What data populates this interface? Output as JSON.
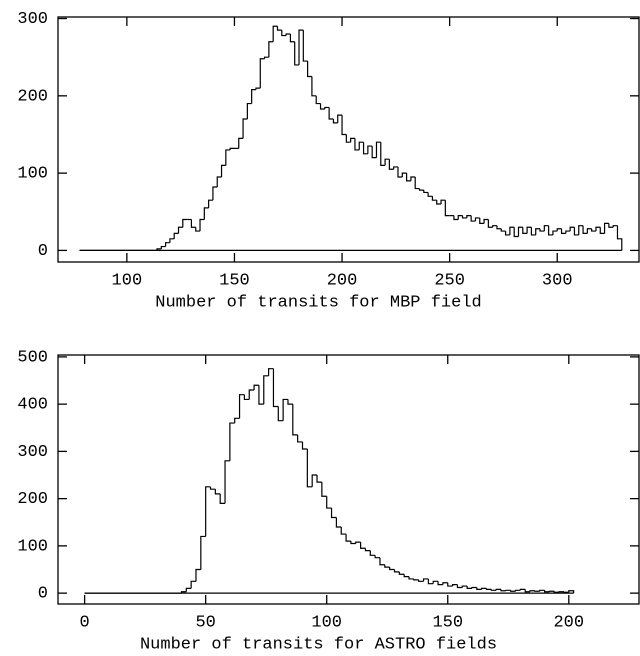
{
  "chart_data": [
    {
      "type": "histogram",
      "xlabel": "Number of transits for MBP field",
      "color": "#000000",
      "xlim": [
        68,
        338
      ],
      "ylim": [
        -15,
        302
      ],
      "xticks": [
        100,
        150,
        200,
        250,
        300
      ],
      "yticks": [
        0,
        100,
        200,
        300
      ],
      "bins": [
        78,
        80,
        82,
        84,
        86,
        88,
        90,
        92,
        94,
        96,
        98,
        100,
        102,
        104,
        106,
        108,
        110,
        112,
        114,
        116,
        118,
        120,
        122,
        124,
        126,
        128,
        130,
        132,
        134,
        136,
        138,
        140,
        142,
        144,
        146,
        148,
        150,
        152,
        154,
        156,
        158,
        160,
        162,
        164,
        166,
        168,
        170,
        172,
        174,
        176,
        178,
        180,
        182,
        184,
        186,
        188,
        190,
        192,
        194,
        196,
        198,
        200,
        202,
        204,
        206,
        208,
        210,
        212,
        214,
        216,
        218,
        220,
        222,
        224,
        226,
        228,
        230,
        232,
        234,
        236,
        238,
        240,
        242,
        244,
        246,
        248,
        250,
        252,
        254,
        256,
        258,
        260,
        262,
        264,
        266,
        268,
        270,
        272,
        274,
        276,
        278,
        280,
        282,
        284,
        286,
        288,
        290,
        292,
        294,
        296,
        298,
        300,
        302,
        304,
        306,
        308,
        310,
        312,
        314,
        316,
        318,
        320,
        322,
        324,
        326,
        328,
        330
      ],
      "counts": [
        0,
        0,
        0,
        0,
        0,
        0,
        0,
        0,
        0,
        0,
        0,
        0,
        0,
        0,
        0,
        0,
        0,
        0,
        2,
        5,
        10,
        15,
        22,
        30,
        40,
        40,
        30,
        25,
        40,
        55,
        65,
        82,
        95,
        110,
        130,
        132,
        132,
        145,
        170,
        190,
        208,
        210,
        248,
        250,
        270,
        290,
        285,
        278,
        280,
        270,
        240,
        285,
        245,
        225,
        200,
        190,
        183,
        185,
        170,
        165,
        175,
        150,
        140,
        145,
        130,
        140,
        125,
        135,
        120,
        140,
        110,
        118,
        105,
        108,
        95,
        100,
        90,
        95,
        80,
        78,
        75,
        70,
        65,
        60,
        65,
        45,
        45,
        40,
        45,
        42,
        45,
        38,
        42,
        35,
        40,
        30,
        32,
        28,
        25,
        20,
        30,
        18,
        30,
        22,
        30,
        20,
        28,
        25,
        32,
        20,
        25,
        28,
        22,
        25,
        30,
        20,
        32,
        22,
        28,
        25,
        30,
        22,
        35,
        30,
        32,
        15
      ]
    },
    {
      "type": "histogram",
      "xlabel": "Number of transits for ASTRO fields",
      "color": "#000000",
      "xlim": [
        -11,
        229
      ],
      "ylim": [
        -23,
        504
      ],
      "xticks": [
        0,
        50,
        100,
        150,
        200
      ],
      "yticks": [
        0,
        100,
        200,
        300,
        400,
        500
      ],
      "bins": [
        0,
        2,
        4,
        6,
        8,
        10,
        12,
        14,
        16,
        18,
        20,
        22,
        24,
        26,
        28,
        30,
        32,
        34,
        36,
        38,
        40,
        42,
        44,
        46,
        48,
        50,
        52,
        54,
        56,
        58,
        60,
        62,
        64,
        66,
        68,
        70,
        72,
        74,
        76,
        78,
        80,
        82,
        84,
        86,
        88,
        90,
        92,
        94,
        96,
        98,
        100,
        102,
        104,
        106,
        108,
        110,
        112,
        114,
        116,
        118,
        120,
        122,
        124,
        126,
        128,
        130,
        132,
        134,
        136,
        138,
        140,
        142,
        144,
        146,
        148,
        150,
        152,
        154,
        156,
        158,
        160,
        162,
        164,
        166,
        168,
        170,
        172,
        174,
        176,
        178,
        180,
        182,
        184,
        186,
        188,
        190,
        192,
        194,
        196,
        198,
        200,
        202
      ],
      "counts": [
        0,
        0,
        0,
        0,
        0,
        0,
        0,
        0,
        0,
        0,
        0,
        0,
        0,
        0,
        0,
        0,
        0,
        0,
        0,
        0,
        3,
        10,
        25,
        50,
        120,
        225,
        220,
        210,
        190,
        280,
        360,
        370,
        420,
        410,
        430,
        440,
        400,
        460,
        475,
        395,
        365,
        410,
        400,
        335,
        320,
        305,
        225,
        250,
        235,
        205,
        180,
        160,
        140,
        125,
        110,
        105,
        108,
        95,
        90,
        80,
        75,
        60,
        55,
        50,
        45,
        40,
        35,
        30,
        28,
        25,
        30,
        20,
        25,
        18,
        22,
        15,
        18,
        12,
        15,
        10,
        12,
        8,
        10,
        8,
        6,
        8,
        5,
        6,
        4,
        6,
        8,
        3,
        5,
        4,
        6,
        3,
        4,
        2,
        3,
        2,
        5
      ]
    }
  ]
}
